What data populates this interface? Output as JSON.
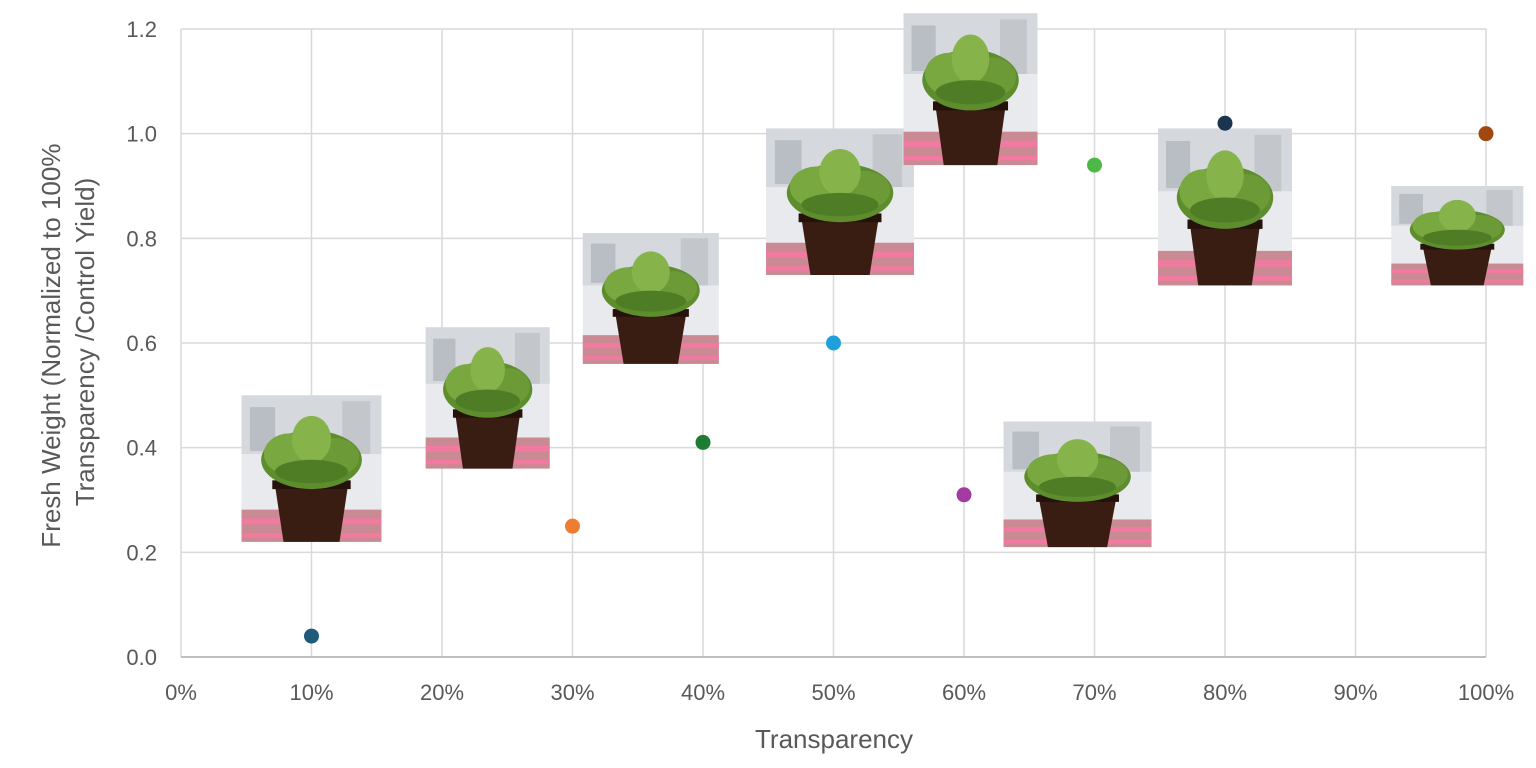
{
  "chart_data": {
    "type": "scatter",
    "title": "",
    "xlabel": "Transparency",
    "ylabel_lines": [
      "Fresh Weight (Normalized to 100%",
      "Transparency /Control Yield)"
    ],
    "xlim": [
      0,
      100
    ],
    "ylim": [
      0,
      1.2
    ],
    "x_ticks": [
      "0%",
      "10%",
      "20%",
      "30%",
      "40%",
      "50%",
      "60%",
      "70%",
      "80%",
      "90%",
      "100%"
    ],
    "x_tick_values": [
      0,
      10,
      20,
      30,
      40,
      50,
      60,
      70,
      80,
      90,
      100
    ],
    "y_ticks": [
      "0.0",
      "0.2",
      "0.4",
      "0.6",
      "0.8",
      "1.0",
      "1.2"
    ],
    "y_tick_values": [
      0,
      0.2,
      0.4,
      0.6,
      0.8,
      1.0,
      1.2
    ],
    "grid": true,
    "legend": "none",
    "points": [
      {
        "x": 10,
        "y": 0.04,
        "color": "#1f5a7a"
      },
      {
        "x": 30,
        "y": 0.25,
        "color": "#ed7d31"
      },
      {
        "x": 40,
        "y": 0.41,
        "color": "#1e7b34"
      },
      {
        "x": 50,
        "y": 0.6,
        "color": "#1ea0dc"
      },
      {
        "x": 60,
        "y": 0.31,
        "color": "#a33ba0"
      },
      {
        "x": 70,
        "y": 0.94,
        "color": "#4cb848"
      },
      {
        "x": 80,
        "y": 1.02,
        "color": "#1a3550"
      },
      {
        "x": 100,
        "y": 1.0,
        "color": "#a0480f"
      }
    ]
  },
  "plant_photos": [
    {
      "icon": "lettuce-plant-photo",
      "transparency": 10
    },
    {
      "icon": "lettuce-plant-photo",
      "transparency": 20
    },
    {
      "icon": "lettuce-plant-photo",
      "transparency": 30
    },
    {
      "icon": "lettuce-plant-photo",
      "transparency": 40
    },
    {
      "icon": "lettuce-plant-photo",
      "transparency": 50
    },
    {
      "icon": "lettuce-plant-photo",
      "transparency": 60
    },
    {
      "icon": "lettuce-plant-photo",
      "transparency": 70
    },
    {
      "icon": "lettuce-plant-photo",
      "transparency": 80
    },
    {
      "icon": "lettuce-plant-photo",
      "transparency": 100
    }
  ]
}
